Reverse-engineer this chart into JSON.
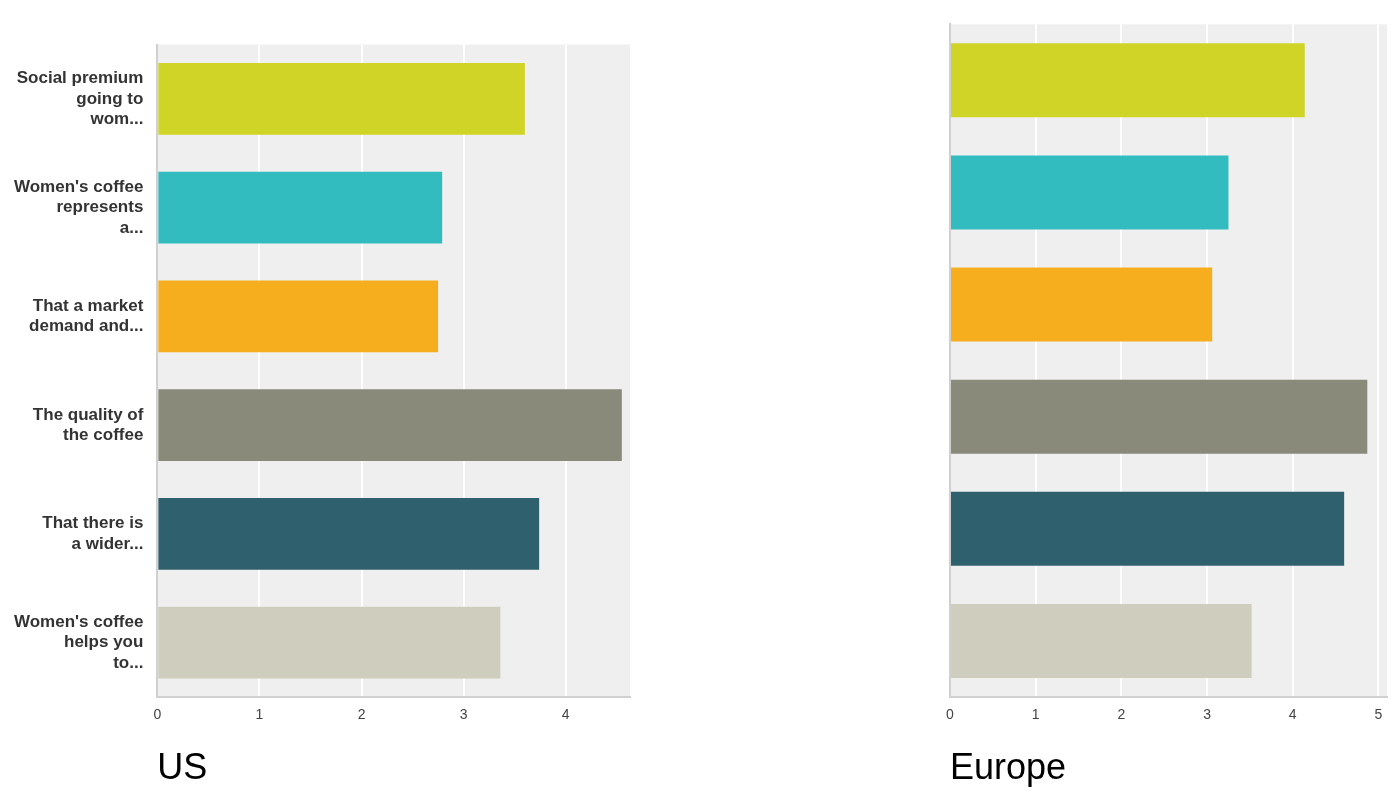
{
  "chart_data": [
    {
      "type": "bar",
      "orientation": "horizontal",
      "xlabel": "US",
      "categories": [
        "Social premium going to wom...",
        "Women's coffee represents a...",
        "That a market demand and...",
        "The quality of the coffee",
        "That there is a wider...",
        "Women's coffee helps you to..."
      ],
      "values": [
        3.6,
        2.79,
        2.75,
        4.55,
        3.74,
        3.36
      ],
      "colors": [
        "#cfd427",
        "#33bcbf",
        "#f6ae1f",
        "#898a79",
        "#2f606d",
        "#cfcdbe"
      ],
      "xlim": [
        0,
        4.63
      ],
      "xticks": [
        0,
        1,
        2,
        3,
        4
      ],
      "grid": "x"
    },
    {
      "type": "bar",
      "orientation": "horizontal",
      "xlabel": "Europe",
      "categories": [
        null,
        null,
        null,
        null,
        null,
        null
      ],
      "values": [
        4.14,
        3.25,
        3.06,
        4.87,
        4.6,
        3.52
      ],
      "colors": [
        "#cfd427",
        "#33bcbf",
        "#f6ae1f",
        "#898a79",
        "#2f606d",
        "#cfcdbe"
      ],
      "xlim": [
        0,
        5.1
      ],
      "xticks": [
        0,
        1,
        2,
        3,
        4,
        5
      ],
      "grid": "x"
    }
  ]
}
